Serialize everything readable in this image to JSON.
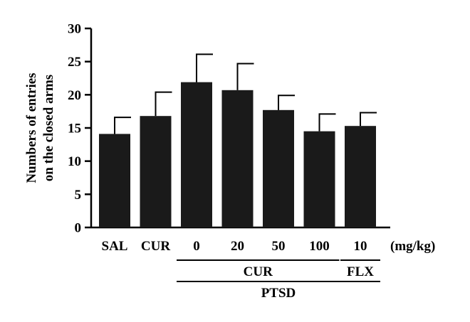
{
  "chart_data": {
    "type": "bar",
    "ylabel_lines": [
      "Numbers of entries",
      "on the closed arms"
    ],
    "ylim": [
      0,
      30
    ],
    "yticks": [
      "0",
      "5",
      "10",
      "15",
      "20",
      "25",
      "30"
    ],
    "categories": [
      "SAL",
      "CUR",
      "0",
      "20",
      "50",
      "100",
      "10"
    ],
    "values": [
      14.1,
      16.8,
      21.9,
      20.7,
      17.7,
      14.5,
      15.3
    ],
    "errors": [
      2.5,
      3.6,
      4.2,
      4.0,
      2.2,
      2.6,
      2.0
    ],
    "unit": "(mg/kg)",
    "groups": [
      {
        "label": "CUR",
        "from": 2,
        "to": 5,
        "level": 1
      },
      {
        "label": "FLX",
        "from": 6,
        "to": 6,
        "level": 1
      },
      {
        "label": "PTSD",
        "from": 2,
        "to": 6,
        "level": 2
      }
    ],
    "bar_color": "#1a1a1a",
    "grid": false,
    "legend": false
  }
}
